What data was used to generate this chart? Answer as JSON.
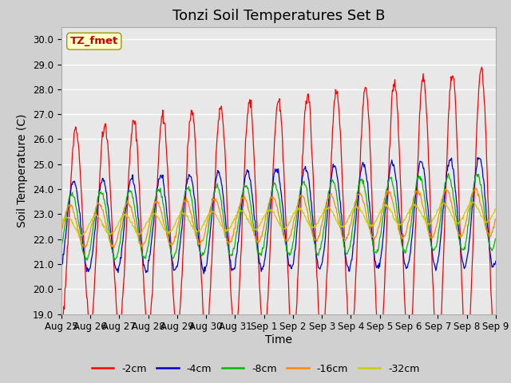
{
  "title": "Tonzi Soil Temperatures Set B",
  "xlabel": "Time",
  "ylabel": "Soil Temperature (C)",
  "ylim": [
    19.0,
    30.5
  ],
  "yticks": [
    19.0,
    20.0,
    21.0,
    22.0,
    23.0,
    24.0,
    25.0,
    26.0,
    27.0,
    28.0,
    29.0,
    30.0
  ],
  "xlabels": [
    "Aug 25",
    "Aug 26",
    "Aug 27",
    "Aug 28",
    "Aug 29",
    "Aug 30",
    "Aug 31",
    "Sep 1",
    "Sep 2",
    "Sep 3",
    "Sep 4",
    "Sep 5",
    "Sep 6",
    "Sep 7",
    "Sep 8",
    "Sep 9"
  ],
  "annotation_text": "TZ_fmet",
  "annotation_color": "#cc0000",
  "annotation_bg": "#ffffcc",
  "colors": {
    "-2cm": "#ff0000",
    "-4cm": "#0000cc",
    "-8cm": "#00bb00",
    "-16cm": "#ff8800",
    "-32cm": "#cccc00"
  },
  "background_color": "#e8e8e8",
  "grid_color": "#ffffff",
  "title_fontsize": 13,
  "axis_fontsize": 10,
  "tick_fontsize": 8.5,
  "n_days": 15,
  "pts_per_day": 48,
  "base_temp": 22.5,
  "base_trend": 0.04,
  "amp_2": 3.8,
  "amp_4": 1.8,
  "amp_8": 1.3,
  "amp_16": 0.85,
  "amp_32": 0.38,
  "phase_2": 0.0,
  "phase_4": 0.45,
  "phase_8": 0.85,
  "phase_16": 1.3,
  "phase_32": 1.9,
  "amp_growth_2": 0.035,
  "amp_growth_4": 0.015,
  "amp_growth_8": 0.012,
  "amp_growth_16": 0.008,
  "amp_growth_32": 0.002
}
